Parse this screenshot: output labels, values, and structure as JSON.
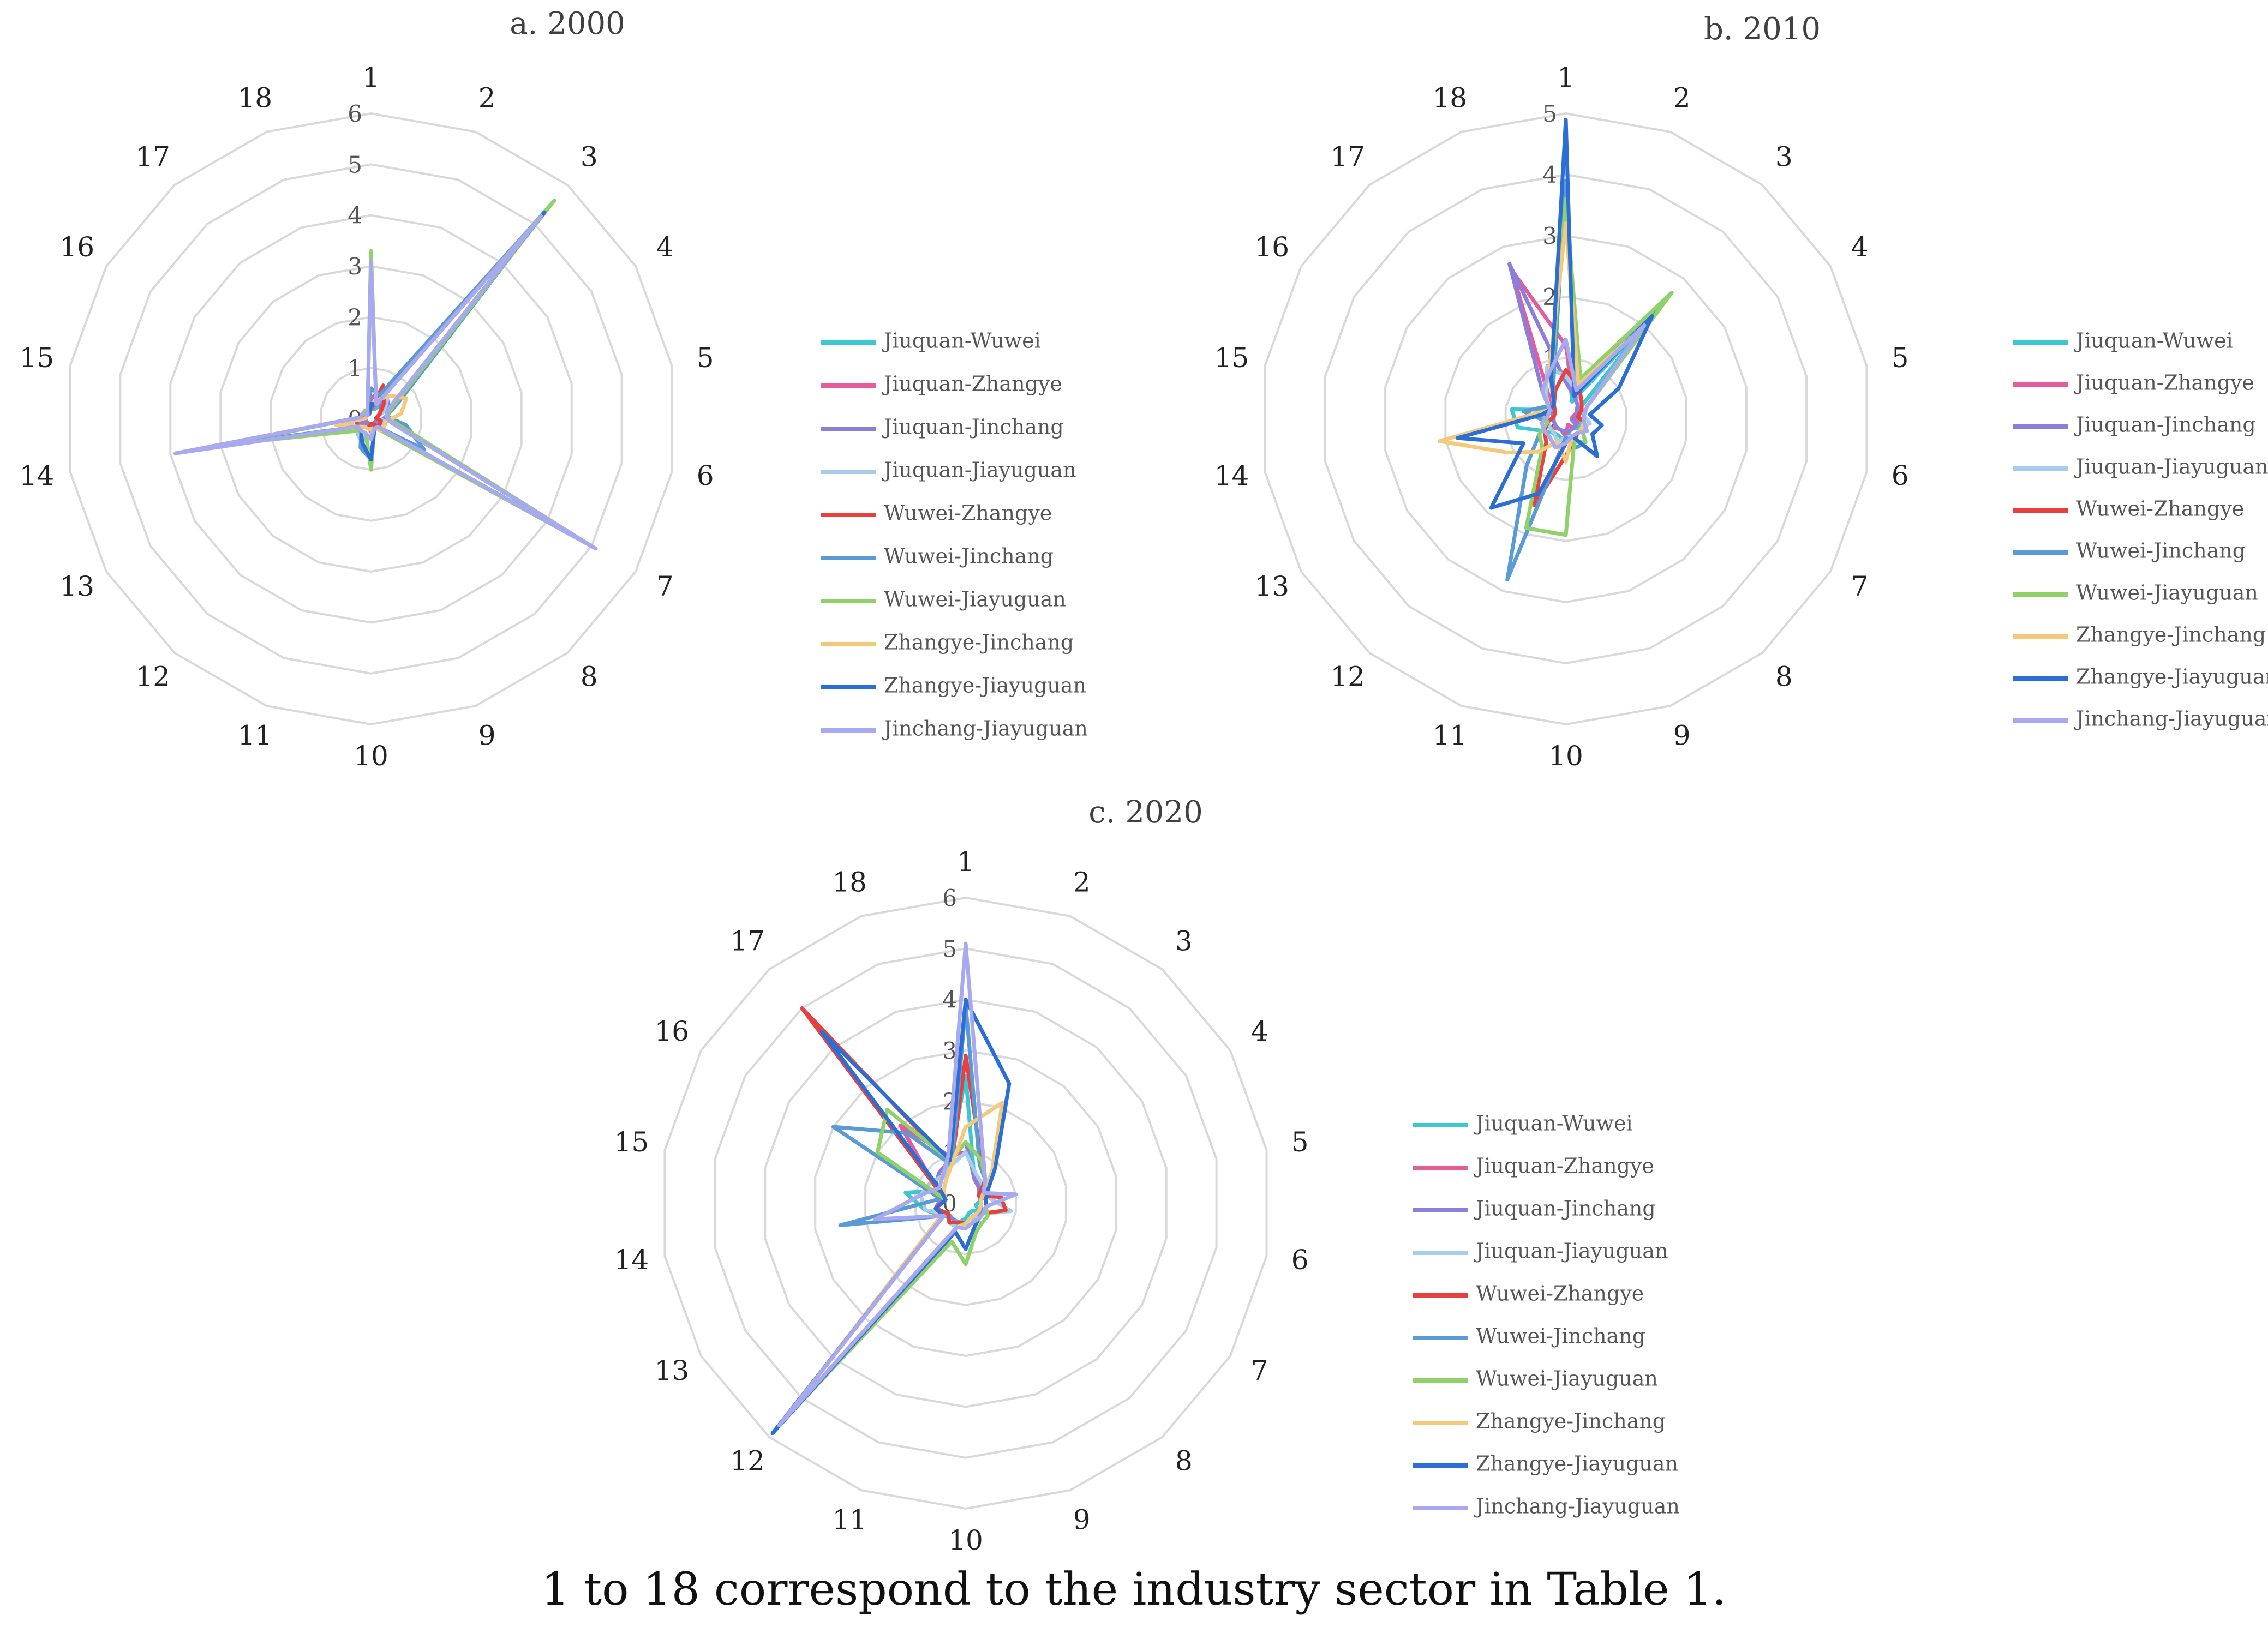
{
  "series_colors": [
    "#3ec6d3",
    "#e45c9b",
    "#8b7fdc",
    "#a6cdea",
    "#e8403e",
    "#5b9bd5",
    "#8fd26a",
    "#f5c97c",
    "#2b6fd6",
    "#a9a9ef"
  ],
  "caption": "1 to 18 correspond to the industry sector in Table 1.",
  "chart_data": [
    {
      "type": "radar",
      "title": "a. 2000",
      "categories": [
        "1",
        "2",
        "3",
        "4",
        "5",
        "6",
        "7",
        "8",
        "9",
        "10",
        "11",
        "12",
        "13",
        "14",
        "15",
        "16",
        "17",
        "18"
      ],
      "rmax": 6,
      "ticks": [
        "0",
        "1",
        "2",
        "3",
        "4",
        "5",
        "6"
      ],
      "series": [
        {
          "name": "Jiuquan-Wuwei",
          "values": [
            0.3,
            0.2,
            0.4,
            0.2,
            0.1,
            0.1,
            0.1,
            0.1,
            0.1,
            0.1,
            0.2,
            0.1,
            0.1,
            0.1,
            0.1,
            0.1,
            0.1,
            0.1
          ]
        },
        {
          "name": "Jiuquan-Zhangye",
          "values": [
            0.4,
            0.6,
            0.3,
            0.2,
            0.1,
            0.2,
            0.2,
            0.1,
            0.1,
            0.3,
            0.1,
            0.1,
            0.1,
            0.3,
            0.1,
            0.1,
            0.1,
            0.1
          ]
        },
        {
          "name": "Jiuquan-Jinchang",
          "values": [
            0.2,
            0.3,
            0.5,
            0.4,
            0.3,
            0.2,
            0.1,
            0.1,
            0.2,
            0.1,
            0.1,
            0.1,
            0.2,
            0.3,
            0.1,
            0.1,
            0.1,
            0.1
          ]
        },
        {
          "name": "Jiuquan-Jiayuguan",
          "values": [
            0.3,
            0.4,
            0.5,
            0.3,
            0.1,
            0.3,
            0.2,
            0.3,
            0.2,
            0.3,
            0.5,
            0.4,
            0.3,
            0.5,
            0.1,
            0.1,
            0.1,
            0.1
          ]
        },
        {
          "name": "Wuwei-Zhangye",
          "values": [
            0.2,
            0.7,
            0.4,
            0.2,
            0.1,
            0.2,
            0.2,
            0.2,
            0.1,
            0.1,
            0.2,
            0.2,
            0.3,
            0.3,
            0.2,
            0.1,
            0.1,
            0.1
          ]
        },
        {
          "name": "Wuwei-Jinchang",
          "values": [
            0.6,
            0.5,
            5.3,
            0.6,
            0.3,
            0.7,
            1.2,
            0.2,
            0.2,
            0.8,
            0.6,
            0.3,
            0.3,
            3.0,
            0.2,
            0.2,
            0.1,
            0.2
          ]
        },
        {
          "name": "Wuwei-Jiayuguan",
          "values": [
            3.3,
            0.3,
            5.6,
            0.5,
            0.3,
            0.5,
            5.0,
            0.3,
            0.2,
            1.0,
            0.3,
            0.3,
            0.5,
            2.8,
            0.2,
            0.2,
            0.2,
            0.2
          ]
        },
        {
          "name": "Zhangye-Jinchang",
          "values": [
            0.3,
            0.4,
            0.6,
            0.8,
            0.6,
            0.3,
            0.3,
            0.3,
            0.2,
            0.2,
            0.2,
            0.2,
            0.3,
            0.7,
            0.1,
            0.1,
            0.1,
            0.1
          ]
        },
        {
          "name": "Zhangye-Jiayuguan",
          "values": [
            0.3,
            0.3,
            5.3,
            0.4,
            0.3,
            0.4,
            5.0,
            0.2,
            0.2,
            0.8,
            0.5,
            0.3,
            0.3,
            3.8,
            0.2,
            0.2,
            0.1,
            0.1
          ]
        },
        {
          "name": "Jinchang-Jiayuguan",
          "values": [
            3.1,
            0.3,
            5.2,
            0.4,
            0.3,
            0.4,
            5.1,
            0.2,
            0.2,
            0.4,
            0.3,
            0.3,
            0.3,
            3.9,
            0.2,
            0.2,
            0.1,
            0.2
          ]
        }
      ]
    },
    {
      "type": "radar",
      "title": "b. 2010",
      "categories": [
        "1",
        "2",
        "3",
        "4",
        "5",
        "6",
        "7",
        "8",
        "9",
        "10",
        "11",
        "12",
        "13",
        "14",
        "15",
        "16",
        "17",
        "18"
      ],
      "rmax": 5,
      "ticks": [
        "0",
        "1",
        "2",
        "3",
        "4",
        "5"
      ],
      "series": [
        {
          "name": "Jiuquan-Wuwei",
          "values": [
            1.3,
            0.3,
            2.1,
            0.2,
            0.2,
            0.2,
            0.3,
            0.2,
            0.2,
            0.4,
            0.3,
            0.3,
            0.4,
            0.8,
            0.9,
            0.3,
            0.6,
            0.8
          ]
        },
        {
          "name": "Jiuquan-Zhangye",
          "values": [
            1.2,
            0.4,
            0.3,
            0.2,
            0.1,
            0.2,
            0.2,
            0.2,
            0.1,
            0.3,
            0.2,
            0.2,
            0.3,
            0.3,
            0.2,
            0.3,
            0.4,
            2.6
          ]
        },
        {
          "name": "Jiuquan-Jinchang",
          "values": [
            0.6,
            0.4,
            0.3,
            0.2,
            0.2,
            0.1,
            0.2,
            0.2,
            0.2,
            0.2,
            0.2,
            0.2,
            0.2,
            0.2,
            0.2,
            0.3,
            0.6,
            2.7
          ]
        },
        {
          "name": "Jiuquan-Jiayuguan",
          "values": [
            0.7,
            0.5,
            0.4,
            0.3,
            0.3,
            0.4,
            0.3,
            0.3,
            0.3,
            0.3,
            0.4,
            0.3,
            0.3,
            0.3,
            0.3,
            0.3,
            0.5,
            0.9
          ]
        },
        {
          "name": "Wuwei-Zhangye",
          "values": [
            0.8,
            0.6,
            0.4,
            0.3,
            0.2,
            0.3,
            0.3,
            0.3,
            0.4,
            0.6,
            1.5,
            0.5,
            0.4,
            0.3,
            0.2,
            0.2,
            0.3,
            0.5
          ]
        },
        {
          "name": "Wuwei-Jinchang",
          "values": [
            3.9,
            0.6,
            2.4,
            0.4,
            0.3,
            0.3,
            0.3,
            0.5,
            0.5,
            0.3,
            2.8,
            1.0,
            0.5,
            0.3,
            0.7,
            0.4,
            0.3,
            0.6
          ]
        },
        {
          "name": "Wuwei-Jiayuguan",
          "values": [
            3.6,
            0.7,
            2.7,
            0.4,
            0.3,
            0.3,
            0.3,
            0.5,
            0.4,
            1.9,
            1.9,
            0.6,
            0.5,
            0.3,
            0.4,
            0.3,
            0.3,
            0.7
          ]
        },
        {
          "name": "Zhangye-Jinchang",
          "values": [
            3.2,
            0.6,
            2.0,
            0.4,
            0.3,
            0.3,
            0.3,
            0.3,
            0.3,
            0.7,
            0.4,
            0.7,
            1.1,
            2.1,
            0.5,
            0.3,
            0.3,
            0.8
          ]
        },
        {
          "name": "Zhangye-Jiayuguan",
          "values": [
            4.9,
            0.4,
            2.2,
            1.0,
            0.4,
            0.6,
            0.5,
            0.8,
            0.3,
            0.4,
            1.3,
            1.9,
            0.8,
            1.8,
            0.4,
            0.3,
            0.3,
            0.7
          ]
        },
        {
          "name": "Jinchang-Jiayuguan",
          "values": [
            1.3,
            0.5,
            2.0,
            0.4,
            0.3,
            0.3,
            0.4,
            0.3,
            0.3,
            0.4,
            0.5,
            0.4,
            0.4,
            0.4,
            0.3,
            0.3,
            0.6,
            0.8
          ]
        }
      ]
    },
    {
      "type": "radar",
      "title": "c. 2020",
      "categories": [
        "1",
        "2",
        "3",
        "4",
        "5",
        "6",
        "7",
        "8",
        "9",
        "10",
        "11",
        "12",
        "13",
        "14",
        "15",
        "16",
        "17",
        "18"
      ],
      "rmax": 6,
      "ticks": [
        "0",
        "1",
        "2",
        "3",
        "4",
        "5",
        "6"
      ],
      "series": [
        {
          "name": "Jiuquan-Wuwei",
          "values": [
            2.5,
            0.5,
            0.4,
            0.3,
            0.3,
            0.2,
            0.3,
            0.2,
            0.2,
            0.3,
            0.4,
            0.4,
            0.5,
            0.8,
            1.2,
            0.5,
            0.6,
            0.9
          ]
        },
        {
          "name": "Jiuquan-Zhangye",
          "values": [
            1.0,
            0.6,
            0.4,
            0.5,
            0.3,
            0.3,
            0.3,
            0.3,
            0.3,
            0.4,
            0.5,
            0.5,
            0.4,
            0.6,
            0.5,
            0.7,
            2.0,
            1.0
          ]
        },
        {
          "name": "Jiuquan-Jinchang",
          "values": [
            1.2,
            0.5,
            0.4,
            0.3,
            0.3,
            0.3,
            0.3,
            0.3,
            0.3,
            0.4,
            0.5,
            0.4,
            0.4,
            0.6,
            0.4,
            0.7,
            0.8,
            0.9
          ]
        },
        {
          "name": "Jiuquan-Jiayuguan",
          "values": [
            1.0,
            0.6,
            0.5,
            0.4,
            0.5,
            0.9,
            0.4,
            0.3,
            0.4,
            0.5,
            0.5,
            0.5,
            0.4,
            0.8,
            0.9,
            0.8,
            0.7,
            0.8
          ]
        },
        {
          "name": "Wuwei-Zhangye",
          "values": [
            2.9,
            0.9,
            0.6,
            0.3,
            0.7,
            0.8,
            0.4,
            0.3,
            0.3,
            0.4,
            0.4,
            0.5,
            0.4,
            0.6,
            0.4,
            0.7,
            5.0,
            0.8
          ]
        },
        {
          "name": "Wuwei-Jinchang",
          "values": [
            3.9,
            0.8,
            0.6,
            0.4,
            0.3,
            0.3,
            0.4,
            0.3,
            0.3,
            0.4,
            0.5,
            5.8,
            0.5,
            2.5,
            0.5,
            3.0,
            1.8,
            0.8
          ]
        },
        {
          "name": "Wuwei-Jiayuguan",
          "values": [
            1.2,
            0.9,
            0.6,
            0.4,
            0.4,
            0.4,
            0.5,
            0.5,
            0.6,
            1.2,
            0.8,
            5.7,
            0.5,
            0.6,
            0.4,
            2.0,
            2.4,
            0.9
          ]
        },
        {
          "name": "Zhangye-Jinchang",
          "values": [
            1.5,
            2.1,
            0.8,
            0.4,
            0.3,
            0.3,
            0.3,
            0.3,
            0.3,
            0.4,
            0.5,
            5.6,
            0.6,
            0.6,
            0.4,
            0.5,
            0.6,
            0.8
          ]
        },
        {
          "name": "Zhangye-Jiayuguan",
          "values": [
            4.0,
            2.5,
            0.9,
            0.5,
            0.4,
            0.4,
            0.4,
            0.4,
            0.5,
            0.9,
            0.6,
            5.9,
            0.5,
            0.6,
            0.4,
            0.6,
            4.4,
            0.9
          ]
        },
        {
          "name": "Jinchang-Jiayuguan",
          "values": [
            5.1,
            1.0,
            0.6,
            0.4,
            1.0,
            0.4,
            0.4,
            0.4,
            0.4,
            0.5,
            0.5,
            5.7,
            0.5,
            1.8,
            0.9,
            0.6,
            0.7,
            1.0
          ]
        }
      ]
    }
  ]
}
